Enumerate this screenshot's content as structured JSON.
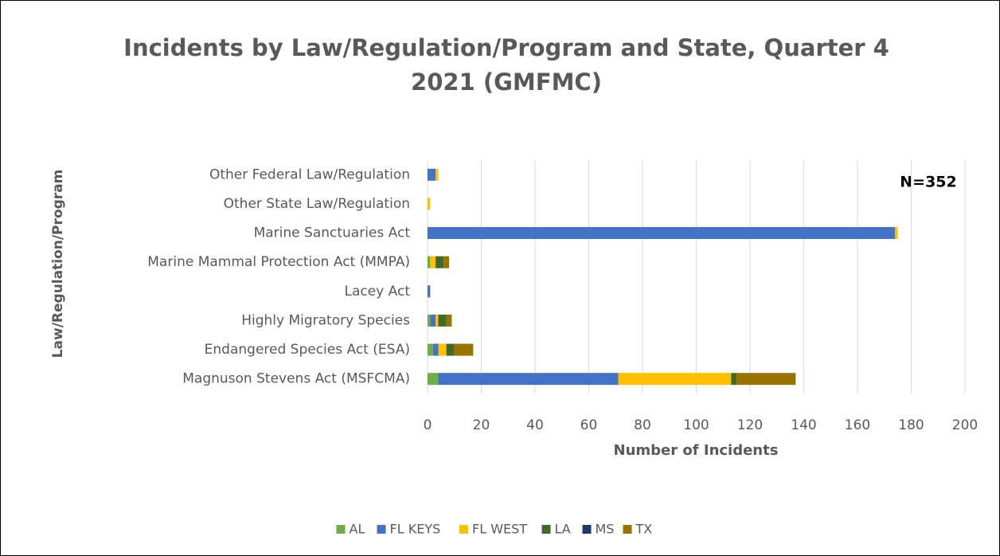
{
  "chart_data": {
    "type": "stacked_bar_horizontal",
    "title": "Incidents by Law/Regulation/Program and State, Quarter 4 2021 (GMFMC)",
    "annotation": "N=352",
    "xlabel": "Number of Incidents",
    "ylabel": "Law/Regulation/Program",
    "categories": [
      "Other Federal Law/Regulation",
      "Other State Law/Regulation",
      "Marine Sanctuaries Act",
      "Marine Mammal Protection Act (MMPA)",
      "Lacey Act",
      "Highly Migratory Species",
      "Endangered Species Act (ESA)",
      "Magnuson Stevens Act (MSFCMA)"
    ],
    "series": [
      {
        "name": "AL",
        "color": "#70ad47",
        "values": [
          0,
          0,
          0,
          1,
          0,
          1,
          2,
          4
        ]
      },
      {
        "name": "FL KEYS",
        "color": "#4472c4",
        "values": [
          3,
          0,
          174,
          0,
          1,
          2,
          2,
          67
        ]
      },
      {
        "name": "FL WEST",
        "color": "#ffc000",
        "values": [
          1,
          1,
          1,
          2,
          0,
          1,
          3,
          42
        ]
      },
      {
        "name": "LA",
        "color": "#43682b",
        "values": [
          0,
          0,
          0,
          3,
          0,
          3,
          3,
          2
        ]
      },
      {
        "name": "MS",
        "color": "#1f3864",
        "values": [
          0,
          0,
          0,
          0,
          0,
          0,
          0,
          0
        ]
      },
      {
        "name": "TX",
        "color": "#997300",
        "values": [
          0,
          0,
          0,
          2,
          0,
          2,
          7,
          22
        ]
      }
    ],
    "xlim": [
      0,
      200
    ],
    "xticks": [
      0,
      20,
      40,
      60,
      80,
      100,
      120,
      140,
      160,
      180,
      200
    ],
    "grid": true,
    "legend": "bottom"
  }
}
